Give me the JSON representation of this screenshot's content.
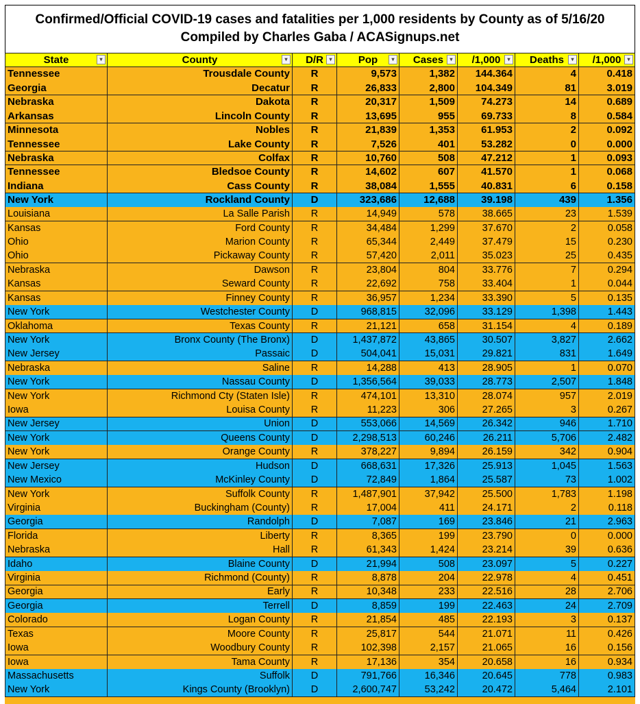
{
  "header": {
    "title": "Confirmed/Official COVID-19 cases and fatalities per 1,000 residents by County as of 5/16/20",
    "subtitle": "Compiled by Charles Gaba / ACASignups.net"
  },
  "table": {
    "columns": [
      "State",
      "County",
      "D/R",
      "Pop",
      "Cases",
      "/1,000",
      "Deaths",
      "/1,000"
    ],
    "colors": {
      "R": "#f9b41c",
      "D": "#19b1ef"
    },
    "rows": [
      {
        "bold": true,
        "cells": [
          "Tennessee",
          "Trousdale County",
          "R",
          "9,573",
          "1,382",
          "144.364",
          "4",
          "0.418"
        ]
      },
      {
        "bold": true,
        "cells": [
          "Georgia",
          "Decatur",
          "R",
          "26,833",
          "2,800",
          "104.349",
          "81",
          "3.019"
        ]
      },
      {
        "bold": true,
        "cells": [
          "Nebraska",
          "Dakota",
          "R",
          "20,317",
          "1,509",
          "74.273",
          "14",
          "0.689"
        ]
      },
      {
        "bold": true,
        "cells": [
          "Arkansas",
          "Lincoln County",
          "R",
          "13,695",
          "955",
          "69.733",
          "8",
          "0.584"
        ]
      },
      {
        "bold": true,
        "cells": [
          "Minnesota",
          "Nobles",
          "R",
          "21,839",
          "1,353",
          "61.953",
          "2",
          "0.092"
        ]
      },
      {
        "bold": true,
        "cells": [
          "Tennessee",
          "Lake County",
          "R",
          "7,526",
          "401",
          "53.282",
          "0",
          "0.000"
        ]
      },
      {
        "bold": true,
        "cells": [
          "Nebraska",
          "Colfax",
          "R",
          "10,760",
          "508",
          "47.212",
          "1",
          "0.093"
        ]
      },
      {
        "bold": true,
        "cells": [
          "Tennessee",
          "Bledsoe County",
          "R",
          "14,602",
          "607",
          "41.570",
          "1",
          "0.068"
        ]
      },
      {
        "bold": true,
        "cells": [
          "Indiana",
          "Cass County",
          "R",
          "38,084",
          "1,555",
          "40.831",
          "6",
          "0.158"
        ]
      },
      {
        "bold": true,
        "cells": [
          "New York",
          "Rockland County",
          "D",
          "323,686",
          "12,688",
          "39.198",
          "439",
          "1.356"
        ]
      },
      {
        "bold": false,
        "cells": [
          "Louisiana",
          "La Salle Parish",
          "R",
          "14,949",
          "578",
          "38.665",
          "23",
          "1.539"
        ]
      },
      {
        "bold": false,
        "cells": [
          "Kansas",
          "Ford County",
          "R",
          "34,484",
          "1,299",
          "37.670",
          "2",
          "0.058"
        ]
      },
      {
        "bold": false,
        "cells": [
          "Ohio",
          "Marion County",
          "R",
          "65,344",
          "2,449",
          "37.479",
          "15",
          "0.230"
        ]
      },
      {
        "bold": false,
        "cells": [
          "Ohio",
          "Pickaway County",
          "R",
          "57,420",
          "2,011",
          "35.023",
          "25",
          "0.435"
        ]
      },
      {
        "bold": false,
        "cells": [
          "Nebraska",
          "Dawson",
          "R",
          "23,804",
          "804",
          "33.776",
          "7",
          "0.294"
        ]
      },
      {
        "bold": false,
        "cells": [
          "Kansas",
          "Seward County",
          "R",
          "22,692",
          "758",
          "33.404",
          "1",
          "0.044"
        ]
      },
      {
        "bold": false,
        "cells": [
          "Kansas",
          "Finney County",
          "R",
          "36,957",
          "1,234",
          "33.390",
          "5",
          "0.135"
        ]
      },
      {
        "bold": false,
        "cells": [
          "New York",
          "Westchester County",
          "D",
          "968,815",
          "32,096",
          "33.129",
          "1,398",
          "1.443"
        ]
      },
      {
        "bold": false,
        "cells": [
          "Oklahoma",
          "Texas County",
          "R",
          "21,121",
          "658",
          "31.154",
          "4",
          "0.189"
        ]
      },
      {
        "bold": false,
        "cells": [
          "New York",
          "Bronx County (The Bronx)",
          "D",
          "1,437,872",
          "43,865",
          "30.507",
          "3,827",
          "2.662"
        ]
      },
      {
        "bold": false,
        "cells": [
          "New Jersey",
          "Passaic",
          "D",
          "504,041",
          "15,031",
          "29.821",
          "831",
          "1.649"
        ]
      },
      {
        "bold": false,
        "cells": [
          "Nebraska",
          "Saline",
          "R",
          "14,288",
          "413",
          "28.905",
          "1",
          "0.070"
        ]
      },
      {
        "bold": false,
        "cells": [
          "New York",
          "Nassau County",
          "D",
          "1,356,564",
          "39,033",
          "28.773",
          "2,507",
          "1.848"
        ]
      },
      {
        "bold": false,
        "cells": [
          "New York",
          "Richmond Cty (Staten Isle)",
          "R",
          "474,101",
          "13,310",
          "28.074",
          "957",
          "2.019"
        ]
      },
      {
        "bold": false,
        "cells": [
          "Iowa",
          "Louisa County",
          "R",
          "11,223",
          "306",
          "27.265",
          "3",
          "0.267"
        ]
      },
      {
        "bold": false,
        "cells": [
          "New Jersey",
          "Union",
          "D",
          "553,066",
          "14,569",
          "26.342",
          "946",
          "1.710"
        ]
      },
      {
        "bold": false,
        "cells": [
          "New York",
          "Queens County",
          "D",
          "2,298,513",
          "60,246",
          "26.211",
          "5,706",
          "2.482"
        ]
      },
      {
        "bold": false,
        "cells": [
          "New York",
          "Orange County",
          "R",
          "378,227",
          "9,894",
          "26.159",
          "342",
          "0.904"
        ]
      },
      {
        "bold": false,
        "cells": [
          "New Jersey",
          "Hudson",
          "D",
          "668,631",
          "17,326",
          "25.913",
          "1,045",
          "1.563"
        ]
      },
      {
        "bold": false,
        "cells": [
          "New Mexico",
          "McKinley County",
          "D",
          "72,849",
          "1,864",
          "25.587",
          "73",
          "1.002"
        ]
      },
      {
        "bold": false,
        "cells": [
          "New York",
          "Suffolk County",
          "R",
          "1,487,901",
          "37,942",
          "25.500",
          "1,783",
          "1.198"
        ]
      },
      {
        "bold": false,
        "cells": [
          "Virginia",
          "Buckingham (County)",
          "R",
          "17,004",
          "411",
          "24.171",
          "2",
          "0.118"
        ]
      },
      {
        "bold": false,
        "cells": [
          "Georgia",
          "Randolph",
          "D",
          "7,087",
          "169",
          "23.846",
          "21",
          "2.963"
        ]
      },
      {
        "bold": false,
        "cells": [
          "Florida",
          "Liberty",
          "R",
          "8,365",
          "199",
          "23.790",
          "0",
          "0.000"
        ]
      },
      {
        "bold": false,
        "cells": [
          "Nebraska",
          "Hall",
          "R",
          "61,343",
          "1,424",
          "23.214",
          "39",
          "0.636"
        ]
      },
      {
        "bold": false,
        "cells": [
          "Idaho",
          "Blaine County",
          "D",
          "21,994",
          "508",
          "23.097",
          "5",
          "0.227"
        ]
      },
      {
        "bold": false,
        "cells": [
          "Virginia",
          "Richmond (County)",
          "R",
          "8,878",
          "204",
          "22.978",
          "4",
          "0.451"
        ]
      },
      {
        "bold": false,
        "cells": [
          "Georgia",
          "Early",
          "R",
          "10,348",
          "233",
          "22.516",
          "28",
          "2.706"
        ]
      },
      {
        "bold": false,
        "cells": [
          "Georgia",
          "Terrell",
          "D",
          "8,859",
          "199",
          "22.463",
          "24",
          "2.709"
        ]
      },
      {
        "bold": false,
        "cells": [
          "Colorado",
          "Logan County",
          "R",
          "21,854",
          "485",
          "22.193",
          "3",
          "0.137"
        ]
      },
      {
        "bold": false,
        "cells": [
          "Texas",
          "Moore County",
          "R",
          "25,817",
          "544",
          "21.071",
          "11",
          "0.426"
        ]
      },
      {
        "bold": false,
        "cells": [
          "Iowa",
          "Woodbury County",
          "R",
          "102,398",
          "2,157",
          "21.065",
          "16",
          "0.156"
        ]
      },
      {
        "bold": false,
        "cells": [
          "Iowa",
          "Tama County",
          "R",
          "17,136",
          "354",
          "20.658",
          "16",
          "0.934"
        ]
      },
      {
        "bold": false,
        "cells": [
          "Massachusetts",
          "Suffolk",
          "D",
          "791,766",
          "16,346",
          "20.645",
          "778",
          "0.983"
        ]
      },
      {
        "bold": false,
        "cells": [
          "New York",
          "Kings County (Brooklyn)",
          "D",
          "2,600,747",
          "53,242",
          "20.472",
          "5,464",
          "2.101"
        ]
      }
    ]
  }
}
